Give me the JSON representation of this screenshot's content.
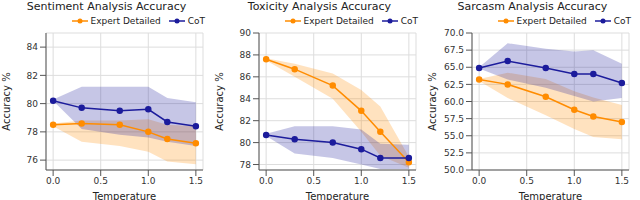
{
  "chart_data": [
    {
      "type": "line",
      "title": "Sentiment Analysis Accuracy",
      "x_label": "Temperature",
      "y_label": "Accuracy %",
      "x": [
        0,
        0.3,
        0.7,
        1.0,
        1.2,
        1.5
      ],
      "xlim": [
        -0.075,
        1.575
      ],
      "xticks": [
        {
          "value": 0,
          "label": "0.0"
        },
        {
          "value": 0.5,
          "label": "0.5"
        },
        {
          "value": 1,
          "label": "1.0"
        },
        {
          "value": 1.5,
          "label": "1.5"
        }
      ],
      "ylim": [
        75.3,
        85
      ],
      "yticks": [
        76,
        78,
        80,
        82,
        84
      ],
      "grid": true,
      "legend": "upper right",
      "series": [
        {
          "name": "Expert Detailed",
          "color": "#ff8c00",
          "marker": "o",
          "values": [
            78.5,
            78.6,
            78.5,
            78.0,
            77.5,
            77.2
          ],
          "lower": [
            78.4,
            77.3,
            77.0,
            76.6,
            75.9,
            75.7
          ],
          "upper": [
            78.6,
            78.8,
            78.8,
            78.9,
            78.5,
            78.4
          ]
        },
        {
          "name": "CoT",
          "color": "#1c1c9c",
          "marker": "o",
          "values": [
            80.2,
            79.7,
            79.5,
            79.6,
            78.7,
            78.4
          ],
          "lower": [
            80.2,
            78.2,
            77.8,
            77.6,
            77.3,
            77.0
          ],
          "upper": [
            80.3,
            81.2,
            81.2,
            81.2,
            80.4,
            80.1
          ]
        }
      ]
    },
    {
      "type": "line",
      "title": "Toxicity Analysis Accuracy",
      "x_label": "Temperature",
      "y_label": "Accuracy %",
      "x": [
        0,
        0.3,
        0.7,
        1.0,
        1.2,
        1.5
      ],
      "xlim": [
        -0.075,
        1.575
      ],
      "xticks": [
        {
          "value": 0,
          "label": "0.0"
        },
        {
          "value": 0.5,
          "label": "0.5"
        },
        {
          "value": 1,
          "label": "1.0"
        },
        {
          "value": 1.5,
          "label": "1.5"
        }
      ],
      "ylim": [
        77.5,
        90
      ],
      "yticks": [
        78,
        80,
        82,
        84,
        86,
        88,
        90
      ],
      "grid": true,
      "legend": "upper right",
      "series": [
        {
          "name": "Expert Detailed",
          "color": "#ff8c00",
          "marker": "o",
          "values": [
            87.6,
            86.7,
            85.2,
            82.9,
            81.0,
            78.2
          ],
          "lower": [
            87.5,
            86.0,
            84.0,
            81.0,
            78.8,
            77.7
          ],
          "upper": [
            87.7,
            87.2,
            86.3,
            84.8,
            83.3,
            78.7
          ]
        },
        {
          "name": "CoT",
          "color": "#1c1c9c",
          "marker": "o",
          "values": [
            80.7,
            80.3,
            80.0,
            79.4,
            78.6,
            78.6
          ],
          "lower": [
            80.6,
            79.0,
            78.6,
            78.0,
            77.6,
            77.6
          ],
          "upper": [
            80.8,
            81.5,
            81.5,
            81.2,
            79.9,
            79.8
          ]
        }
      ]
    },
    {
      "type": "line",
      "title": "Sarcasm Analysis Accuracy",
      "x_label": "Temperature",
      "y_label": "Accuracy %",
      "x": [
        0,
        0.3,
        0.7,
        1.0,
        1.2,
        1.5
      ],
      "xlim": [
        -0.075,
        1.575
      ],
      "xticks": [
        {
          "value": 0,
          "label": "0.0"
        },
        {
          "value": 0.5,
          "label": "0.5"
        },
        {
          "value": 1,
          "label": "1.0"
        },
        {
          "value": 1.5,
          "label": "1.5"
        }
      ],
      "ylim": [
        50,
        70
      ],
      "yticks": [
        {
          "value": 50,
          "label": "50.0"
        },
        52.5,
        {
          "value": 55,
          "label": "55.0"
        },
        57.5,
        {
          "value": 60,
          "label": "60.0"
        },
        62.5,
        {
          "value": 65,
          "label": "65.0"
        },
        67.5,
        {
          "value": 70,
          "label": "70.0"
        }
      ],
      "grid": true,
      "legend": "upper right",
      "series": [
        {
          "name": "Expert Detailed",
          "color": "#ff8c00",
          "marker": "o",
          "values": [
            63.2,
            62.5,
            60.7,
            58.8,
            57.8,
            57.0
          ],
          "lower": [
            63.0,
            60.5,
            58.0,
            56.0,
            54.8,
            54.5
          ],
          "upper": [
            63.3,
            64.2,
            63.3,
            61.5,
            60.6,
            59.5
          ]
        },
        {
          "name": "CoT",
          "color": "#1c1c9c",
          "marker": "o",
          "values": [
            64.9,
            65.9,
            64.9,
            64.0,
            64.0,
            62.7
          ],
          "lower": [
            64.8,
            63.2,
            62.0,
            60.8,
            60.0,
            60.5
          ],
          "upper": [
            65.0,
            68.5,
            67.7,
            67.3,
            67.5,
            65.5
          ]
        }
      ]
    }
  ]
}
